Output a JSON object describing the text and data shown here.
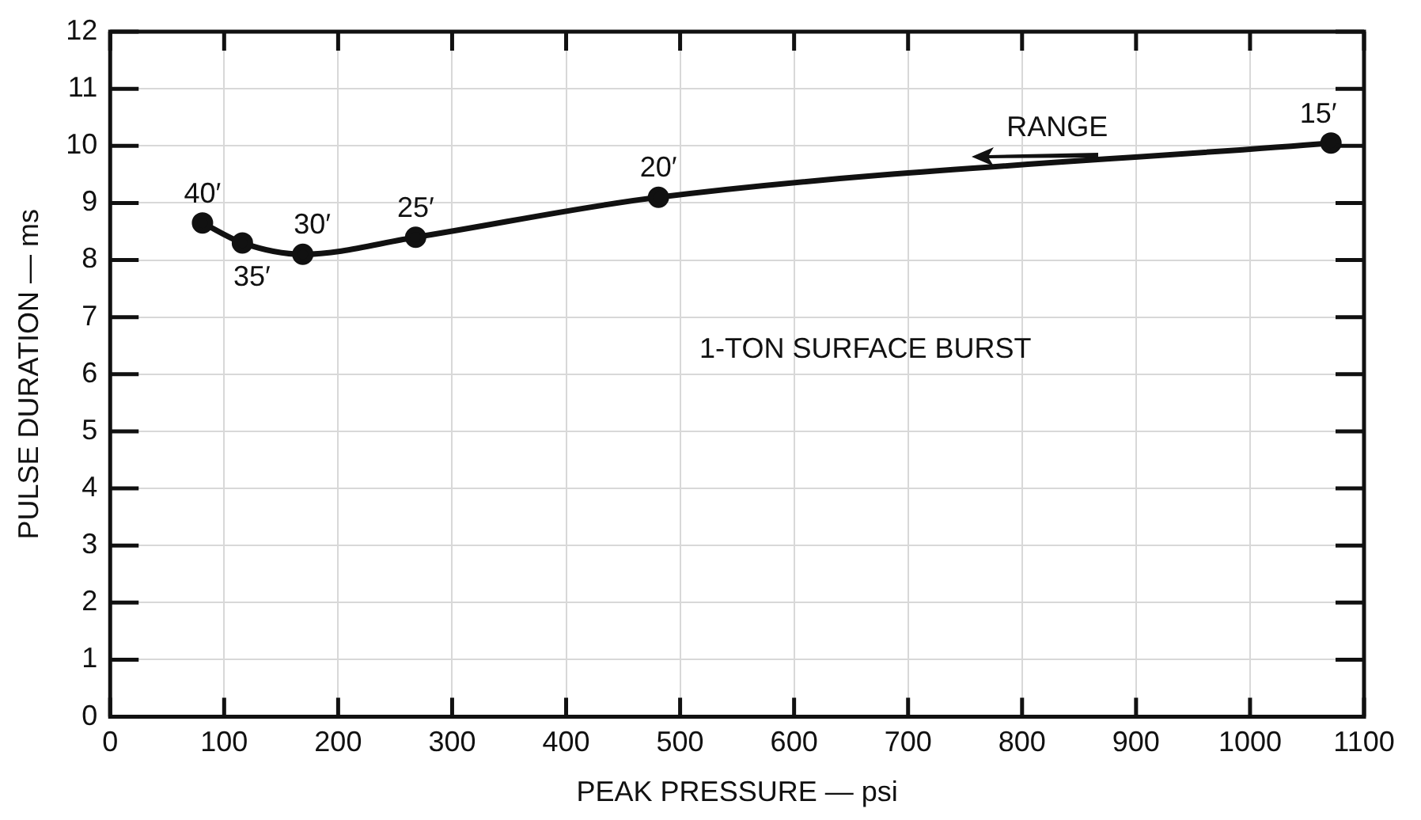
{
  "chart_data": {
    "type": "line",
    "xlabel": "PEAK PRESSURE — psi",
    "ylabel": "PULSE DURATION — ms",
    "x": [
      81,
      116,
      169,
      268,
      481,
      1071
    ],
    "series": [
      {
        "color": "#111111",
        "values": [
          8.65,
          8.3,
          8.1,
          8.4,
          9.1,
          10.05
        ]
      }
    ],
    "xlim": [
      0,
      1100
    ],
    "xticks": [
      0,
      100,
      200,
      300,
      400,
      500,
      600,
      700,
      800,
      900,
      1000,
      1100
    ],
    "ylim": [
      0,
      12
    ],
    "yticks": [
      0,
      1,
      2,
      3,
      4,
      5,
      6,
      7,
      8,
      9,
      10,
      11,
      12
    ],
    "grid": true,
    "marker": "circle",
    "line_style": "solid",
    "legend": false,
    "annotations": [
      {
        "text": "40′",
        "x": 81,
        "y": 8.65
      },
      {
        "text": "35′",
        "x": 116,
        "y": 8.3
      },
      {
        "text": "30′",
        "x": 169,
        "y": 8.1
      },
      {
        "text": "25′",
        "x": 268,
        "y": 8.4
      },
      {
        "text": "20′",
        "x": 481,
        "y": 9.1
      },
      {
        "text": "15′",
        "x": 1071,
        "y": 10.05
      },
      "RANGE",
      "1-TON SURFACE BURST"
    ]
  }
}
